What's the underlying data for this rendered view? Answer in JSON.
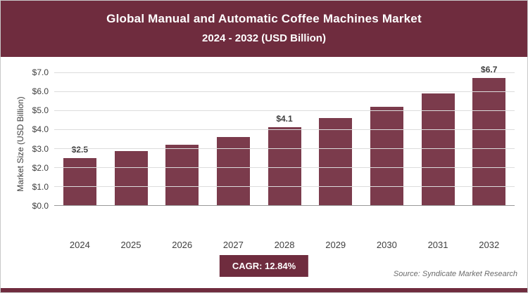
{
  "header": {
    "title_line1": "Global Manual and Automatic Coffee Machines Market",
    "title_line2": "2024 - 2032 (USD Billion)"
  },
  "chart_data": {
    "type": "bar",
    "categories": [
      "2024",
      "2025",
      "2026",
      "2027",
      "2028",
      "2029",
      "2030",
      "2031",
      "2032"
    ],
    "values": [
      2.5,
      2.85,
      3.2,
      3.6,
      4.1,
      4.6,
      5.2,
      5.9,
      6.7
    ],
    "data_labels": [
      "$2.5",
      "",
      "",
      "",
      "$4.1",
      "",
      "",
      "",
      "$6.7"
    ],
    "title": "Global Manual and Automatic Coffee Machines Market 2024 - 2032 (USD Billion)",
    "xlabel": "",
    "ylabel": "Market Size (USD Billion)",
    "ylim": [
      0,
      7
    ],
    "ytick_step": 1,
    "yticks": [
      "$0.0",
      "$1.0",
      "$2.0",
      "$3.0",
      "$4.0",
      "$5.0",
      "$6.0",
      "$7.0"
    ],
    "grid": true,
    "legend": "none",
    "bar_color": "#7b3b4c"
  },
  "footer": {
    "cagr_label": "CAGR: 12.84%",
    "source": "Source: Syndicate Market Research"
  },
  "colors": {
    "header_bg": "#6f2c3e",
    "bar": "#7b3b4c",
    "gridline": "#dcdcdc",
    "axis_text": "#404040"
  }
}
